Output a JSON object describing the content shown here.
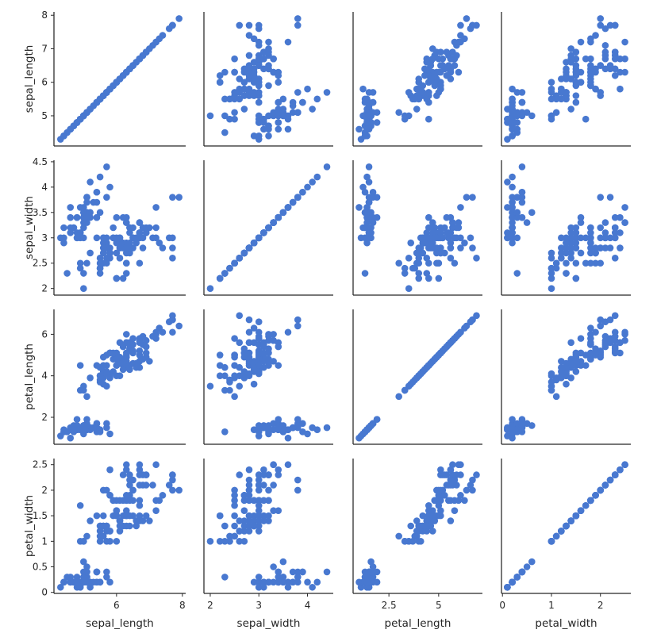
{
  "chart_data": {
    "type": "scatter",
    "kind": "pairplot",
    "marker_color": "#4878d0",
    "variables": [
      "sepal_length",
      "sepal_width",
      "petal_length",
      "petal_width"
    ],
    "axis_labels": {
      "x": [
        "sepal_length",
        "sepal_width",
        "petal_length",
        "petal_width"
      ],
      "y": [
        "sepal_length",
        "sepal_width",
        "petal_length",
        "petal_width"
      ]
    },
    "limits": {
      "sepal_length": [
        4.1,
        8.1
      ],
      "sepal_width": [
        1.87,
        4.53
      ],
      "petal_length": [
        0.7,
        7.2
      ],
      "petal_width": [
        -0.02,
        2.62
      ]
    },
    "ticks": {
      "sepal_length": [
        5,
        6,
        7,
        8
      ],
      "sepal_width": [
        2.0,
        2.5,
        3.0,
        3.5,
        4.0,
        4.5
      ],
      "petal_length": [
        2,
        4,
        6
      ],
      "petal_width": [
        0.0,
        0.5,
        1.0,
        1.5,
        2.0,
        2.5
      ]
    },
    "bottom_ticks": {
      "sepal_length": [
        6,
        8
      ],
      "sepal_width": [
        2,
        3,
        4
      ],
      "petal_length": [
        2.5,
        5.0
      ],
      "petal_width": [
        0,
        1,
        2
      ]
    },
    "data": [
      [
        5.1,
        3.5,
        1.4,
        0.2
      ],
      [
        4.9,
        3.0,
        1.4,
        0.2
      ],
      [
        4.7,
        3.2,
        1.3,
        0.2
      ],
      [
        4.6,
        3.1,
        1.5,
        0.2
      ],
      [
        5.0,
        3.6,
        1.4,
        0.2
      ],
      [
        5.4,
        3.9,
        1.7,
        0.4
      ],
      [
        4.6,
        3.4,
        1.4,
        0.3
      ],
      [
        5.0,
        3.4,
        1.5,
        0.2
      ],
      [
        4.4,
        2.9,
        1.4,
        0.2
      ],
      [
        4.9,
        3.1,
        1.5,
        0.1
      ],
      [
        5.4,
        3.7,
        1.5,
        0.2
      ],
      [
        4.8,
        3.4,
        1.6,
        0.2
      ],
      [
        4.8,
        3.0,
        1.4,
        0.1
      ],
      [
        4.3,
        3.0,
        1.1,
        0.1
      ],
      [
        5.8,
        4.0,
        1.2,
        0.2
      ],
      [
        5.7,
        4.4,
        1.5,
        0.4
      ],
      [
        5.4,
        3.9,
        1.3,
        0.4
      ],
      [
        5.1,
        3.5,
        1.4,
        0.3
      ],
      [
        5.7,
        3.8,
        1.7,
        0.3
      ],
      [
        5.1,
        3.8,
        1.5,
        0.3
      ],
      [
        5.4,
        3.4,
        1.7,
        0.2
      ],
      [
        5.1,
        3.7,
        1.5,
        0.4
      ],
      [
        4.6,
        3.6,
        1.0,
        0.2
      ],
      [
        5.1,
        3.3,
        1.7,
        0.5
      ],
      [
        4.8,
        3.4,
        1.9,
        0.2
      ],
      [
        5.0,
        3.0,
        1.6,
        0.2
      ],
      [
        5.0,
        3.4,
        1.6,
        0.4
      ],
      [
        5.2,
        3.5,
        1.5,
        0.2
      ],
      [
        5.2,
        3.4,
        1.4,
        0.2
      ],
      [
        4.7,
        3.2,
        1.6,
        0.2
      ],
      [
        4.8,
        3.1,
        1.6,
        0.2
      ],
      [
        5.4,
        3.4,
        1.5,
        0.4
      ],
      [
        5.2,
        4.1,
        1.5,
        0.1
      ],
      [
        5.5,
        4.2,
        1.4,
        0.2
      ],
      [
        4.9,
        3.1,
        1.5,
        0.2
      ],
      [
        5.0,
        3.2,
        1.2,
        0.2
      ],
      [
        5.5,
        3.5,
        1.3,
        0.2
      ],
      [
        4.9,
        3.6,
        1.4,
        0.1
      ],
      [
        4.4,
        3.0,
        1.3,
        0.2
      ],
      [
        5.1,
        3.4,
        1.5,
        0.2
      ],
      [
        5.0,
        3.5,
        1.3,
        0.3
      ],
      [
        4.5,
        2.3,
        1.3,
        0.3
      ],
      [
        4.4,
        3.2,
        1.3,
        0.2
      ],
      [
        5.0,
        3.5,
        1.6,
        0.6
      ],
      [
        5.1,
        3.8,
        1.9,
        0.4
      ],
      [
        4.8,
        3.0,
        1.4,
        0.3
      ],
      [
        5.1,
        3.8,
        1.6,
        0.2
      ],
      [
        4.6,
        3.2,
        1.4,
        0.2
      ],
      [
        5.3,
        3.7,
        1.5,
        0.2
      ],
      [
        5.0,
        3.3,
        1.4,
        0.2
      ],
      [
        7.0,
        3.2,
        4.7,
        1.4
      ],
      [
        6.4,
        3.2,
        4.5,
        1.5
      ],
      [
        6.9,
        3.1,
        4.9,
        1.5
      ],
      [
        5.5,
        2.3,
        4.0,
        1.3
      ],
      [
        6.5,
        2.8,
        4.6,
        1.5
      ],
      [
        5.7,
        2.8,
        4.5,
        1.3
      ],
      [
        6.3,
        3.3,
        4.7,
        1.6
      ],
      [
        4.9,
        2.4,
        3.3,
        1.0
      ],
      [
        6.6,
        2.9,
        4.6,
        1.3
      ],
      [
        5.2,
        2.7,
        3.9,
        1.4
      ],
      [
        5.0,
        2.0,
        3.5,
        1.0
      ],
      [
        5.9,
        3.0,
        4.2,
        1.5
      ],
      [
        6.0,
        2.2,
        4.0,
        1.0
      ],
      [
        6.1,
        2.9,
        4.7,
        1.4
      ],
      [
        5.6,
        2.9,
        3.6,
        1.3
      ],
      [
        6.7,
        3.1,
        4.4,
        1.4
      ],
      [
        5.6,
        3.0,
        4.5,
        1.5
      ],
      [
        5.8,
        2.7,
        4.1,
        1.0
      ],
      [
        6.2,
        2.2,
        4.5,
        1.5
      ],
      [
        5.6,
        2.5,
        3.9,
        1.1
      ],
      [
        5.9,
        3.2,
        4.8,
        1.8
      ],
      [
        6.1,
        2.8,
        4.0,
        1.3
      ],
      [
        6.3,
        2.5,
        4.9,
        1.5
      ],
      [
        6.1,
        2.8,
        4.7,
        1.2
      ],
      [
        6.4,
        2.9,
        4.3,
        1.3
      ],
      [
        6.6,
        3.0,
        4.4,
        1.4
      ],
      [
        6.8,
        2.8,
        4.8,
        1.4
      ],
      [
        6.7,
        3.0,
        5.0,
        1.7
      ],
      [
        6.0,
        2.9,
        4.5,
        1.5
      ],
      [
        5.7,
        2.6,
        3.5,
        1.0
      ],
      [
        5.5,
        2.4,
        3.8,
        1.1
      ],
      [
        5.5,
        2.4,
        3.7,
        1.0
      ],
      [
        5.8,
        2.7,
        3.9,
        1.2
      ],
      [
        6.0,
        2.7,
        5.1,
        1.6
      ],
      [
        5.4,
        3.0,
        4.5,
        1.5
      ],
      [
        6.0,
        3.4,
        4.5,
        1.6
      ],
      [
        6.7,
        3.1,
        4.7,
        1.5
      ],
      [
        6.3,
        2.3,
        4.4,
        1.3
      ],
      [
        5.6,
        3.0,
        4.1,
        1.3
      ],
      [
        5.5,
        2.5,
        4.0,
        1.3
      ],
      [
        5.5,
        2.6,
        4.4,
        1.2
      ],
      [
        6.1,
        3.0,
        4.6,
        1.4
      ],
      [
        5.8,
        2.6,
        4.0,
        1.2
      ],
      [
        5.0,
        2.3,
        3.3,
        1.0
      ],
      [
        5.6,
        2.7,
        4.2,
        1.3
      ],
      [
        5.7,
        3.0,
        4.2,
        1.2
      ],
      [
        5.7,
        2.9,
        4.2,
        1.3
      ],
      [
        6.2,
        2.9,
        4.3,
        1.3
      ],
      [
        5.1,
        2.5,
        3.0,
        1.1
      ],
      [
        5.7,
        2.8,
        4.1,
        1.3
      ],
      [
        6.3,
        3.3,
        6.0,
        2.5
      ],
      [
        5.8,
        2.7,
        5.1,
        1.9
      ],
      [
        7.1,
        3.0,
        5.9,
        2.1
      ],
      [
        6.3,
        2.9,
        5.6,
        1.8
      ],
      [
        6.5,
        3.0,
        5.8,
        2.2
      ],
      [
        7.6,
        3.0,
        6.6,
        2.1
      ],
      [
        4.9,
        2.5,
        4.5,
        1.7
      ],
      [
        7.3,
        2.9,
        6.3,
        1.8
      ],
      [
        6.7,
        2.5,
        5.8,
        1.8
      ],
      [
        7.2,
        3.6,
        6.1,
        2.5
      ],
      [
        6.5,
        3.2,
        5.1,
        2.0
      ],
      [
        6.4,
        2.7,
        5.3,
        1.9
      ],
      [
        6.8,
        3.0,
        5.5,
        2.1
      ],
      [
        5.7,
        2.5,
        5.0,
        2.0
      ],
      [
        5.8,
        2.8,
        5.1,
        2.4
      ],
      [
        6.4,
        3.2,
        5.3,
        2.3
      ],
      [
        6.5,
        3.0,
        5.5,
        1.8
      ],
      [
        7.7,
        3.8,
        6.7,
        2.2
      ],
      [
        7.7,
        2.6,
        6.9,
        2.3
      ],
      [
        6.0,
        2.2,
        5.0,
        1.5
      ],
      [
        6.9,
        3.2,
        5.7,
        2.3
      ],
      [
        5.6,
        2.8,
        4.9,
        2.0
      ],
      [
        7.7,
        2.8,
        6.7,
        2.0
      ],
      [
        6.3,
        2.7,
        4.9,
        1.8
      ],
      [
        6.7,
        3.3,
        5.7,
        2.1
      ],
      [
        7.2,
        3.2,
        6.0,
        1.8
      ],
      [
        6.2,
        2.8,
        4.8,
        1.8
      ],
      [
        6.1,
        3.0,
        4.9,
        1.8
      ],
      [
        6.4,
        2.8,
        5.6,
        2.1
      ],
      [
        7.2,
        3.0,
        5.8,
        1.6
      ],
      [
        7.4,
        2.8,
        6.1,
        1.9
      ],
      [
        7.9,
        3.8,
        6.4,
        2.0
      ],
      [
        6.4,
        2.8,
        5.6,
        2.2
      ],
      [
        6.3,
        2.8,
        5.1,
        1.5
      ],
      [
        6.1,
        2.6,
        5.6,
        1.4
      ],
      [
        7.7,
        3.0,
        6.1,
        2.3
      ],
      [
        6.3,
        3.4,
        5.6,
        2.4
      ],
      [
        6.4,
        3.1,
        5.5,
        1.8
      ],
      [
        6.0,
        3.0,
        4.8,
        1.8
      ],
      [
        6.9,
        3.1,
        5.4,
        2.1
      ],
      [
        6.7,
        3.1,
        5.6,
        2.4
      ],
      [
        6.9,
        3.1,
        5.1,
        2.3
      ],
      [
        5.8,
        2.7,
        5.1,
        1.9
      ],
      [
        6.8,
        3.2,
        5.9,
        2.3
      ],
      [
        6.7,
        3.3,
        5.7,
        2.5
      ],
      [
        6.7,
        3.0,
        5.2,
        2.3
      ],
      [
        6.3,
        2.5,
        5.0,
        1.9
      ],
      [
        6.5,
        3.0,
        5.2,
        2.0
      ],
      [
        6.2,
        3.4,
        5.4,
        2.3
      ],
      [
        5.9,
        3.0,
        5.1,
        1.8
      ]
    ]
  }
}
